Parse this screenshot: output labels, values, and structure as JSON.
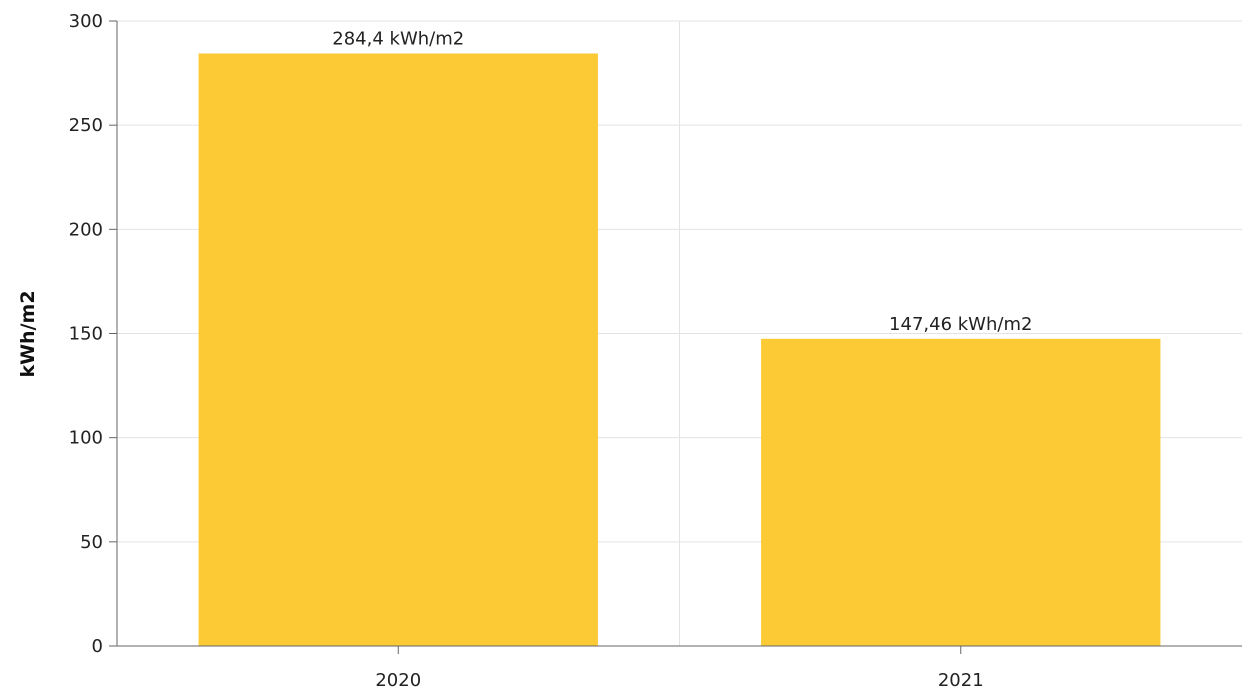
{
  "chart_data": {
    "type": "bar",
    "title": "",
    "xlabel": "",
    "ylabel": "kWh/m2",
    "categories": [
      "2020",
      "2021"
    ],
    "values": [
      284.4,
      147.46
    ],
    "data_labels": [
      "284,4 kWh/m2",
      "147,46 kWh/m2"
    ],
    "ylim": [
      0,
      300
    ],
    "yticks": [
      0,
      50,
      100,
      150,
      200,
      250,
      300
    ],
    "grid": true,
    "legend": "none",
    "bar_color": "#fcca34"
  }
}
